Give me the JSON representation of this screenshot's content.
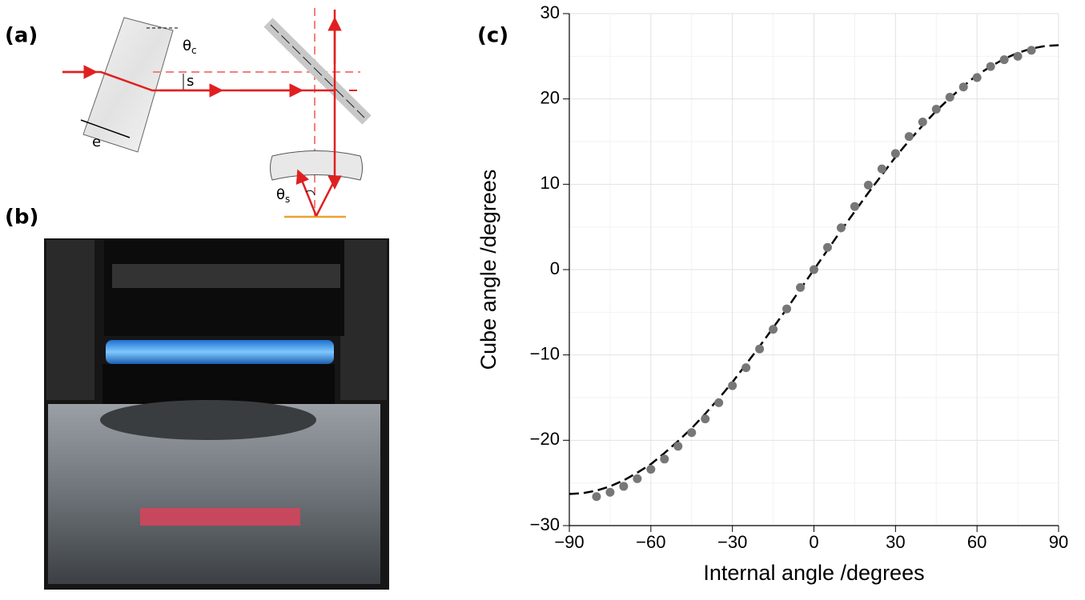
{
  "panel_labels": [
    "(a)",
    "(b)",
    "(c)"
  ],
  "diagram": {
    "theta_c": {
      "symbol": "θ",
      "subscript": "c"
    },
    "s": "s",
    "e": "e",
    "theta_s": {
      "symbol": "θ",
      "subscript": "s"
    }
  },
  "chart_data": {
    "type": "scatter",
    "xlabel": "Internal angle /degrees",
    "ylabel": "Cube angle /degrees",
    "xlim": [
      -90,
      90
    ],
    "ylim": [
      -30,
      30
    ],
    "xticks": [
      {
        "value": -90,
        "label": "−90"
      },
      {
        "value": -60,
        "label": "−60"
      },
      {
        "value": -30,
        "label": "−30"
      },
      0,
      30,
      60,
      90
    ],
    "yticks": [
      {
        "value": -30,
        "label": "−30"
      },
      {
        "value": -20,
        "label": "−20"
      },
      {
        "value": -10,
        "label": "−10"
      },
      0,
      10,
      20,
      30
    ],
    "grid": true,
    "points": {
      "color": "#777777",
      "x": [
        -80,
        -75,
        -70,
        -65,
        -60,
        -55,
        -50,
        -45,
        -40,
        -35,
        -30,
        -25,
        -20,
        -15,
        -10,
        -5,
        0,
        5,
        10,
        15,
        20,
        25,
        30,
        35,
        40,
        45,
        50,
        55,
        60,
        65,
        70,
        75,
        80
      ],
      "y": [
        -26.6,
        -26.1,
        -25.4,
        -24.5,
        -23.4,
        -22.2,
        -20.7,
        -19.1,
        -17.5,
        -15.6,
        -13.6,
        -11.5,
        -9.3,
        -7.0,
        -4.6,
        -2.1,
        0,
        2.6,
        4.9,
        7.4,
        9.9,
        11.8,
        13.6,
        15.6,
        17.3,
        18.8,
        20.2,
        21.4,
        22.5,
        23.8,
        24.6,
        25.0,
        25.7
      ]
    },
    "fit": {
      "color": "#000000",
      "dashed": true,
      "x": [
        -90,
        -85,
        -80,
        -75,
        -70,
        -65,
        -60,
        -55,
        -50,
        -45,
        -40,
        -35,
        -30,
        -25,
        -20,
        -15,
        -10,
        -5,
        0,
        5,
        10,
        15,
        20,
        25,
        30,
        35,
        40,
        45,
        50,
        55,
        60,
        65,
        70,
        75,
        80,
        85,
        90
      ],
      "y": [
        -26.3,
        -26.2,
        -25.9,
        -25.4,
        -24.7,
        -23.8,
        -22.8,
        -21.5,
        -20.1,
        -18.6,
        -16.9,
        -15.1,
        -13.2,
        -11.1,
        -9.0,
        -6.8,
        -4.6,
        -2.3,
        0,
        2.3,
        4.6,
        6.8,
        9.0,
        11.1,
        13.2,
        15.1,
        16.9,
        18.6,
        20.1,
        21.5,
        22.8,
        23.8,
        24.7,
        25.4,
        25.9,
        26.2,
        26.3
      ]
    }
  }
}
